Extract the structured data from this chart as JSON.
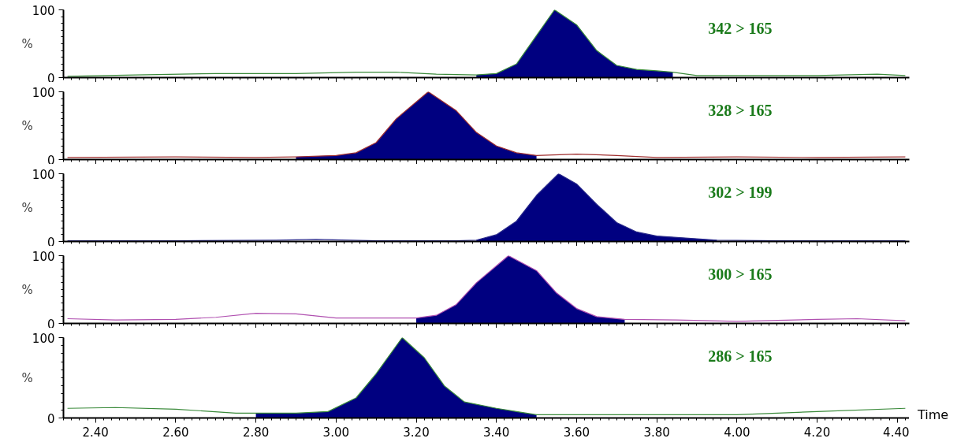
{
  "chart_data": [
    {
      "type": "line",
      "annotations": [
        "342 > 165"
      ],
      "ylabel": "%",
      "xlim": [
        2.32,
        4.43
      ],
      "xticks": [
        2.4,
        2.6,
        2.8,
        3.0,
        3.2,
        3.4,
        3.6,
        3.8,
        4.0,
        4.2,
        4.4
      ],
      "ylim": [
        0,
        100
      ],
      "yticks": [
        0,
        100
      ],
      "tick_labels": "y",
      "grid": false,
      "series": [
        {
          "color": "#3a8a3a",
          "x": [
            2.33,
            2.5,
            2.7,
            2.9,
            3.05,
            3.15,
            3.25,
            3.35,
            3.4,
            3.45,
            3.5,
            3.545,
            3.6,
            3.65,
            3.7,
            3.75,
            3.8,
            3.84,
            3.9,
            4.0,
            4.2,
            4.35,
            4.42
          ],
          "values": [
            2,
            4,
            6,
            6,
            8,
            8,
            5,
            4,
            6,
            20,
            62,
            100,
            78,
            40,
            18,
            12,
            10,
            8,
            3,
            3,
            3,
            5,
            3
          ]
        },
        {
          "type": "area",
          "color": "#000080",
          "x": [
            3.35,
            3.4,
            3.45,
            3.5,
            3.545,
            3.6,
            3.65,
            3.7,
            3.75,
            3.8,
            3.84
          ],
          "values": [
            4,
            6,
            20,
            62,
            100,
            78,
            40,
            18,
            12,
            10,
            8
          ]
        }
      ]
    },
    {
      "type": "line",
      "annotations": [
        "328 > 165"
      ],
      "ylabel": "%",
      "xlim": [
        2.32,
        4.43
      ],
      "xticks": [
        2.4,
        2.6,
        2.8,
        3.0,
        3.2,
        3.4,
        3.6,
        3.8,
        4.0,
        4.2,
        4.4
      ],
      "ylim": [
        0,
        100
      ],
      "yticks": [
        0,
        100
      ],
      "tick_labels": "y",
      "grid": false,
      "series": [
        {
          "color": "#a03030",
          "x": [
            2.33,
            2.6,
            2.8,
            2.9,
            3.0,
            3.05,
            3.1,
            3.15,
            3.23,
            3.3,
            3.35,
            3.4,
            3.45,
            3.5,
            3.6,
            3.7,
            3.8,
            4.0,
            4.2,
            4.42
          ],
          "values": [
            3,
            4,
            3,
            4,
            6,
            10,
            25,
            60,
            100,
            72,
            40,
            20,
            10,
            6,
            8,
            6,
            3,
            4,
            3,
            4
          ]
        },
        {
          "type": "area",
          "color": "#000080",
          "x": [
            2.9,
            3.0,
            3.05,
            3.1,
            3.15,
            3.23,
            3.3,
            3.35,
            3.4,
            3.45,
            3.5
          ],
          "values": [
            4,
            6,
            10,
            25,
            60,
            100,
            72,
            40,
            20,
            10,
            6
          ]
        }
      ]
    },
    {
      "type": "line",
      "annotations": [
        "302 > 199"
      ],
      "ylabel": "%",
      "xlim": [
        2.32,
        4.43
      ],
      "xticks": [
        2.4,
        2.6,
        2.8,
        3.0,
        3.2,
        3.4,
        3.6,
        3.8,
        4.0,
        4.2,
        4.4
      ],
      "ylim": [
        0,
        100
      ],
      "yticks": [
        0,
        100
      ],
      "tick_labels": "y",
      "grid": false,
      "series": [
        {
          "color": "#2a2a8a",
          "x": [
            2.33,
            2.6,
            2.85,
            2.95,
            3.1,
            3.3,
            3.35,
            3.4,
            3.45,
            3.5,
            3.555,
            3.6,
            3.65,
            3.7,
            3.75,
            3.8,
            3.9,
            3.95,
            4.1,
            4.42
          ],
          "values": [
            1,
            1,
            2,
            3,
            1,
            1,
            2,
            10,
            30,
            68,
            100,
            85,
            55,
            28,
            14,
            8,
            4,
            2,
            1,
            1
          ]
        },
        {
          "type": "area",
          "color": "#000080",
          "x": [
            3.35,
            3.4,
            3.45,
            3.5,
            3.555,
            3.6,
            3.65,
            3.7,
            3.75,
            3.8,
            3.9,
            3.95
          ],
          "values": [
            2,
            10,
            30,
            68,
            100,
            85,
            55,
            28,
            14,
            8,
            4,
            2
          ]
        }
      ]
    },
    {
      "type": "line",
      "annotations": [
        "300 > 165"
      ],
      "ylabel": "%",
      "xlim": [
        2.32,
        4.43
      ],
      "xticks": [
        2.4,
        2.6,
        2.8,
        3.0,
        3.2,
        3.4,
        3.6,
        3.8,
        4.0,
        4.2,
        4.4
      ],
      "ylim": [
        0,
        100
      ],
      "yticks": [
        0,
        100
      ],
      "tick_labels": "y",
      "grid": false,
      "series": [
        {
          "color": "#b050b0",
          "x": [
            2.33,
            2.45,
            2.6,
            2.7,
            2.8,
            2.9,
            3.0,
            3.1,
            3.2,
            3.25,
            3.3,
            3.35,
            3.43,
            3.5,
            3.55,
            3.6,
            3.65,
            3.72,
            3.85,
            4.0,
            4.2,
            4.3,
            4.42
          ],
          "values": [
            7,
            5,
            6,
            9,
            15,
            14,
            8,
            8,
            8,
            12,
            28,
            60,
            100,
            78,
            45,
            22,
            10,
            6,
            5,
            3,
            6,
            7,
            4
          ]
        },
        {
          "type": "area",
          "color": "#000080",
          "x": [
            3.2,
            3.25,
            3.3,
            3.35,
            3.43,
            3.5,
            3.55,
            3.6,
            3.65,
            3.72
          ],
          "values": [
            8,
            12,
            28,
            60,
            100,
            78,
            45,
            22,
            10,
            6
          ]
        }
      ]
    },
    {
      "type": "line",
      "annotations": [
        "286 > 165"
      ],
      "xlabel": "Time",
      "xlim": [
        2.32,
        4.43
      ],
      "xticks": [
        {
          "value": 2.4,
          "label": "2.40"
        },
        {
          "value": 2.6,
          "label": "2.60"
        },
        {
          "value": 2.8,
          "label": "2.80"
        },
        {
          "value": 3.0,
          "label": "3.00"
        },
        {
          "value": 3.2,
          "label": "3.20"
        },
        {
          "value": 3.4,
          "label": "3.40"
        },
        {
          "value": 3.6,
          "label": "3.60"
        },
        {
          "value": 3.8,
          "label": "3.80"
        },
        {
          "value": 4.0,
          "label": "4.00"
        },
        {
          "value": 4.2,
          "label": "4.20"
        },
        {
          "value": 4.4,
          "label": "4.40"
        }
      ],
      "ylabel": "%",
      "ylim": [
        0,
        100
      ],
      "yticks": [
        0,
        100
      ],
      "grid": false,
      "series": [
        {
          "color": "#3a8a3a",
          "x": [
            2.33,
            2.45,
            2.6,
            2.75,
            2.8,
            2.9,
            2.98,
            3.05,
            3.1,
            3.165,
            3.22,
            3.27,
            3.32,
            3.4,
            3.45,
            3.5,
            3.7,
            4.0,
            4.2,
            4.42
          ],
          "values": [
            12,
            13,
            11,
            6,
            6,
            6,
            8,
            25,
            55,
            100,
            75,
            40,
            20,
            12,
            8,
            4,
            4,
            4,
            8,
            12
          ]
        },
        {
          "type": "area",
          "color": "#000080",
          "x": [
            2.8,
            2.9,
            2.98,
            3.05,
            3.1,
            3.165,
            3.22,
            3.27,
            3.32,
            3.4,
            3.45,
            3.5
          ],
          "values": [
            6,
            6,
            8,
            25,
            55,
            100,
            75,
            40,
            20,
            12,
            8,
            4
          ]
        }
      ]
    }
  ]
}
